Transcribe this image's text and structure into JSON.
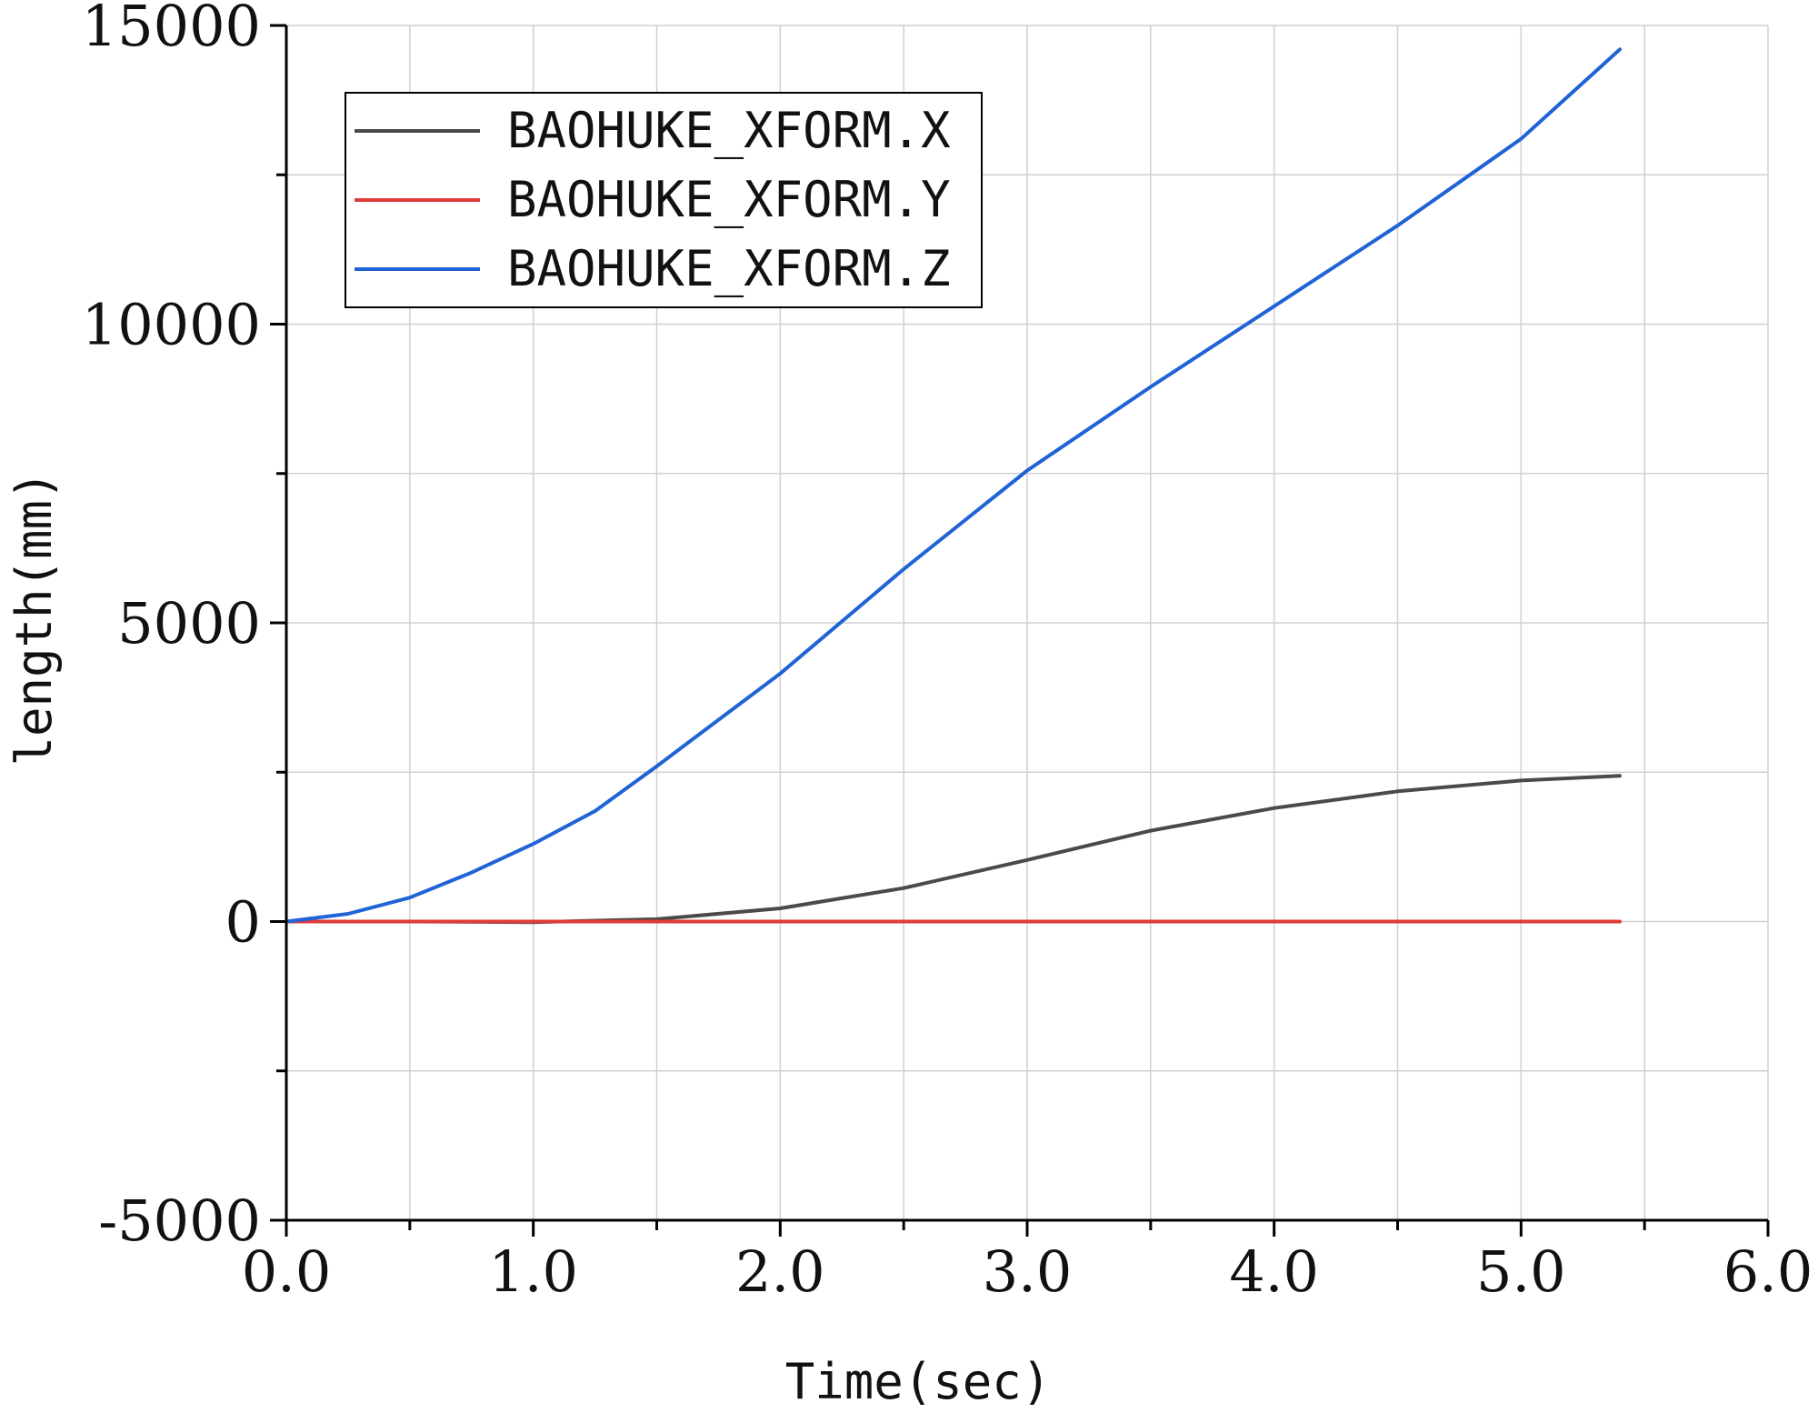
{
  "chart_data": {
    "type": "line",
    "xlabel": "Time(sec)",
    "ylabel": "length(mm)",
    "xlim": [
      0,
      6
    ],
    "ylim": [
      -5000,
      15000
    ],
    "x_ticks": [
      "0.0",
      "1.0",
      "2.0",
      "3.0",
      "4.0",
      "5.0",
      "6.0"
    ],
    "x_tick_values": [
      0,
      1,
      2,
      3,
      4,
      5,
      6
    ],
    "y_ticks": [
      "-5000",
      "0",
      "5000",
      "10000",
      "15000"
    ],
    "y_tick_values": [
      -5000,
      0,
      5000,
      10000,
      15000
    ],
    "grid": true,
    "legend_position": "top-left",
    "series": [
      {
        "name": "BAOHUKE_XFORM.X",
        "color": "#4a4a4a",
        "x": [
          0,
          0.5,
          1.0,
          1.5,
          2.0,
          2.5,
          3.0,
          3.5,
          4.0,
          4.5,
          5.0,
          5.4
        ],
        "values": [
          0,
          0,
          -10,
          40,
          220,
          560,
          1030,
          1520,
          1900,
          2180,
          2360,
          2440
        ]
      },
      {
        "name": "BAOHUKE_XFORM.Y",
        "color": "#e03b3b",
        "x": [
          0,
          1.0,
          2.0,
          3.0,
          4.0,
          5.0,
          5.4
        ],
        "values": [
          0,
          0,
          0,
          0,
          0,
          0,
          0
        ]
      },
      {
        "name": "BAOHUKE_XFORM.Z",
        "color": "#1f63d6",
        "x": [
          0,
          0.25,
          0.5,
          0.75,
          1.0,
          1.25,
          1.5,
          2.0,
          2.5,
          3.0,
          3.5,
          4.0,
          4.5,
          5.0,
          5.4
        ],
        "values": [
          0,
          130,
          400,
          820,
          1300,
          1850,
          2600,
          4150,
          5900,
          7550,
          8950,
          10300,
          11650,
          13100,
          14600
        ]
      }
    ]
  }
}
